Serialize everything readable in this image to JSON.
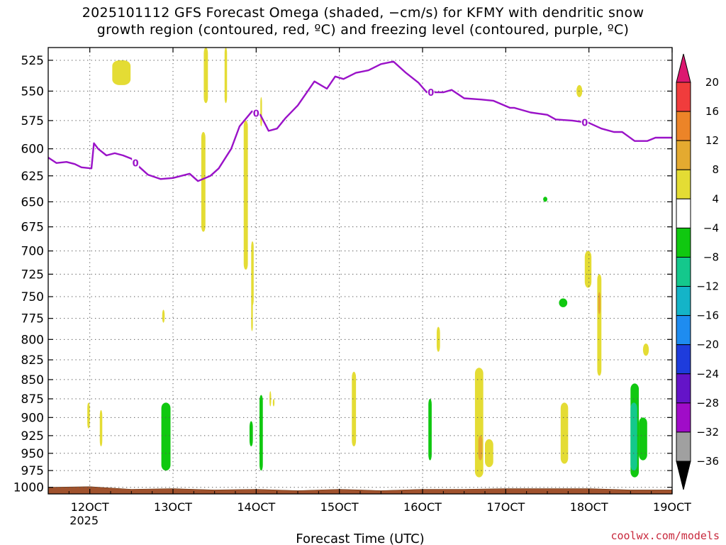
{
  "title": {
    "line1": "2025101112 GFS Forecast Omega (shaded, −cm/s) for KFMY with dendritic snow",
    "line2": "growth region (contoured, red, ºC) and freezing level (contoured, purple, ºC)"
  },
  "credit": "coolwx.com/models",
  "chart_data": {
    "type": "heatmap",
    "title": "2025101112 GFS Forecast Omega (shaded, −cm/s) for KFMY with dendritic snow growth region (contoured, red, ºC) and freezing level (contoured, purple, ºC)",
    "xlabel": "Forecast Time (UTC)",
    "ylabel": "",
    "x_units": "days (October 2025)",
    "xlim": [
      11.5,
      19.0
    ],
    "ylim": [
      1010,
      515
    ],
    "y_scale": "log-pressure (hPa)",
    "x_ticks": [
      {
        "value": 12,
        "label": "12OCT",
        "sublabel": "2025"
      },
      {
        "value": 13,
        "label": "13OCT"
      },
      {
        "value": 14,
        "label": "14OCT"
      },
      {
        "value": 15,
        "label": "15OCT"
      },
      {
        "value": 16,
        "label": "16OCT"
      },
      {
        "value": 17,
        "label": "17OCT"
      },
      {
        "value": 18,
        "label": "18OCT"
      },
      {
        "value": 19,
        "label": "19OCT"
      }
    ],
    "y_ticks": [
      {
        "value": 525,
        "label": "525"
      },
      {
        "value": 550,
        "label": "550"
      },
      {
        "value": 575,
        "label": "575"
      },
      {
        "value": 600,
        "label": "600"
      },
      {
        "value": 625,
        "label": "625"
      },
      {
        "value": 650,
        "label": "650"
      },
      {
        "value": 675,
        "label": "675"
      },
      {
        "value": 700,
        "label": "700"
      },
      {
        "value": 725,
        "label": "725"
      },
      {
        "value": 750,
        "label": "750"
      },
      {
        "value": 775,
        "label": "775"
      },
      {
        "value": 800,
        "label": "800"
      },
      {
        "value": 825,
        "label": "825"
      },
      {
        "value": 850,
        "label": "850"
      },
      {
        "value": 875,
        "label": "875"
      },
      {
        "value": 900,
        "label": "900"
      },
      {
        "value": 925,
        "label": "925"
      },
      {
        "value": 950,
        "label": "950"
      },
      {
        "value": 975,
        "label": "975"
      },
      {
        "value": 1000,
        "label": "1000"
      }
    ],
    "grid": true,
    "colorbar": {
      "levels": [
        "20",
        "16",
        "12",
        "8",
        "4",
        "−4",
        "−8",
        "−12",
        "−16",
        "−20",
        "−24",
        "−28",
        "−32",
        "−36"
      ],
      "colors": [
        "#dc1870",
        "#f03c3c",
        "#ec8428",
        "#e4aa30",
        "#e4dc34",
        "#ffffff",
        "#10c810",
        "#14c88c",
        "#14b4c8",
        "#1e8cf0",
        "#1e3cdc",
        "#6414c8",
        "#a00cc8",
        "#a0a0a0",
        "#000000"
      ]
    },
    "freezing_level": {
      "name": "0 ºC freezing level",
      "color": "#9a12c8",
      "label": "0",
      "x": [
        11.5,
        11.6,
        11.72,
        11.82,
        11.9,
        12.02,
        12.05,
        12.1,
        12.2,
        12.3,
        12.4,
        12.5,
        12.6,
        12.7,
        12.85,
        13.0,
        13.2,
        13.3,
        13.45,
        13.55,
        13.7,
        13.8,
        13.95,
        14.05,
        14.15,
        14.25,
        14.35,
        14.5,
        14.7,
        14.85,
        14.95,
        15.05,
        15.2,
        15.35,
        15.5,
        15.65,
        15.8,
        15.95,
        16.05,
        16.25,
        16.35,
        16.5,
        16.7,
        16.85,
        17.05,
        17.1,
        17.3,
        17.5,
        17.6,
        17.8,
        18.0,
        18.15,
        18.3,
        18.4,
        18.55,
        18.7,
        18.8,
        18.9,
        19.0
      ],
      "y": [
        608,
        613,
        612,
        614,
        617,
        618,
        595,
        600,
        606,
        604,
        606,
        609,
        617,
        624,
        628,
        627,
        623,
        630,
        625,
        618,
        600,
        580,
        567,
        570,
        584,
        582,
        573,
        562,
        542,
        548,
        538,
        540,
        535,
        533,
        528,
        526,
        535,
        543,
        551,
        551,
        549,
        556,
        557,
        558,
        564,
        564,
        568,
        570,
        574,
        575,
        577,
        582,
        585,
        585,
        593,
        593,
        590,
        590,
        590
      ]
    },
    "omega_cells": [
      {
        "t0": 12.27,
        "t1": 12.49,
        "p0": 525,
        "p1": 545,
        "value": 6
      },
      {
        "t0": 13.37,
        "t1": 13.42,
        "p0": 515,
        "p1": 560,
        "value": 6
      },
      {
        "t0": 13.62,
        "t1": 13.65,
        "p0": 515,
        "p1": 560,
        "value": 6
      },
      {
        "t0": 13.34,
        "t1": 13.39,
        "p0": 585,
        "p1": 680,
        "value": 6
      },
      {
        "t0": 13.85,
        "t1": 13.9,
        "p0": 575,
        "p1": 720,
        "value": 6
      },
      {
        "t0": 13.94,
        "t1": 13.97,
        "p0": 690,
        "p1": 760,
        "value": 6
      },
      {
        "t0": 13.94,
        "t1": 13.96,
        "p0": 750,
        "p1": 790,
        "value": 5
      },
      {
        "t0": 14.05,
        "t1": 14.07,
        "p0": 555,
        "p1": 580,
        "value": 5
      },
      {
        "t0": 12.87,
        "t1": 12.9,
        "p0": 765,
        "p1": 780,
        "value": 5
      },
      {
        "t0": 15.15,
        "t1": 15.2,
        "p0": 840,
        "p1": 940,
        "value": 6
      },
      {
        "t0": 16.17,
        "t1": 16.21,
        "p0": 785,
        "p1": 815,
        "value": 5
      },
      {
        "t0": 16.63,
        "t1": 16.73,
        "p0": 835,
        "p1": 985,
        "value": 6
      },
      {
        "t0": 16.67,
        "t1": 16.72,
        "p0": 925,
        "p1": 960,
        "value": 9
      },
      {
        "t0": 16.75,
        "t1": 16.85,
        "p0": 930,
        "p1": 970,
        "value": 6
      },
      {
        "t0": 17.45,
        "t1": 17.5,
        "p0": 645,
        "p1": 650,
        "value": -6
      },
      {
        "t0": 17.66,
        "t1": 17.75,
        "p0": 880,
        "p1": 965,
        "value": 6
      },
      {
        "t0": 17.64,
        "t1": 17.74,
        "p0": 752,
        "p1": 762,
        "value": -6
      },
      {
        "t0": 17.85,
        "t1": 17.92,
        "p0": 545,
        "p1": 555,
        "value": 6
      },
      {
        "t0": 17.95,
        "t1": 18.03,
        "p0": 700,
        "p1": 740,
        "value": 6
      },
      {
        "t0": 18.1,
        "t1": 18.15,
        "p0": 725,
        "p1": 845,
        "value": 6
      },
      {
        "t0": 18.11,
        "t1": 18.14,
        "p0": 745,
        "p1": 770,
        "value": 10
      },
      {
        "t0": 18.65,
        "t1": 18.72,
        "p0": 805,
        "p1": 820,
        "value": 6
      },
      {
        "t0": 11.97,
        "t1": 12.0,
        "p0": 880,
        "p1": 915,
        "value": 5
      },
      {
        "t0": 12.12,
        "t1": 12.15,
        "p0": 890,
        "p1": 940,
        "value": 5
      },
      {
        "t0": 12.86,
        "t1": 12.97,
        "p0": 880,
        "p1": 975,
        "value": -6
      },
      {
        "t0": 13.92,
        "t1": 13.96,
        "p0": 905,
        "p1": 940,
        "value": -6
      },
      {
        "t0": 14.04,
        "t1": 14.08,
        "p0": 870,
        "p1": 975,
        "value": -6
      },
      {
        "t0": 14.16,
        "t1": 14.18,
        "p0": 865,
        "p1": 885,
        "value": 5
      },
      {
        "t0": 14.2,
        "t1": 14.22,
        "p0": 875,
        "p1": 885,
        "value": 5
      },
      {
        "t0": 16.07,
        "t1": 16.11,
        "p0": 875,
        "p1": 960,
        "value": -6
      },
      {
        "t0": 18.5,
        "t1": 18.6,
        "p0": 855,
        "p1": 985,
        "value": -6
      },
      {
        "t0": 18.5,
        "t1": 18.58,
        "p0": 880,
        "p1": 975,
        "value": -10
      },
      {
        "t0": 18.6,
        "t1": 18.7,
        "p0": 900,
        "p1": 960,
        "value": -6
      }
    ],
    "surface": {
      "color": "#a0522d",
      "x": [
        11.5,
        12.0,
        12.5,
        13.0,
        13.5,
        14.0,
        14.5,
        15.0,
        15.5,
        16.0,
        16.5,
        17.0,
        17.5,
        18.0,
        18.5,
        19.0
      ],
      "y": [
        1000,
        999,
        1003,
        1002,
        1004,
        1003,
        1005,
        1003,
        1005,
        1003,
        1003,
        1002,
        1002,
        1002,
        1004,
        1004
      ]
    }
  }
}
